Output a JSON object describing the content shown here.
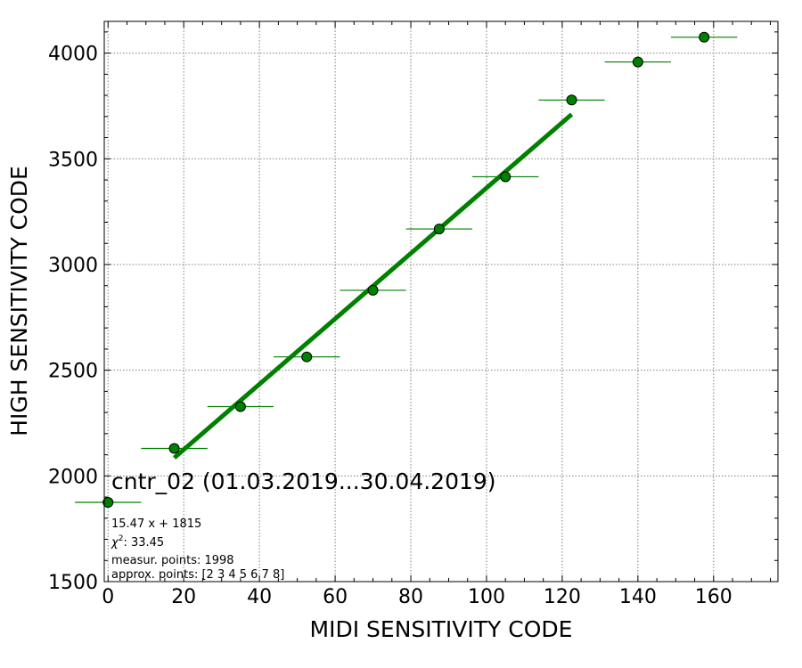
{
  "chart_data": {
    "type": "scatter",
    "title": "cntr_02 (01.03.2019...30.04.2019)",
    "xlabel": "MIDI SENSITIVITY CODE",
    "ylabel": "HIGH SENSITIVITY CODE",
    "xlim": [
      -1,
      177
    ],
    "ylim": [
      1500,
      4150
    ],
    "x_ticks": [
      0,
      20,
      40,
      60,
      80,
      100,
      120,
      140,
      160
    ],
    "y_ticks": [
      1500,
      2000,
      2500,
      3000,
      3500,
      4000
    ],
    "grid": true,
    "color": "#008000",
    "series": [
      {
        "x": [
          0,
          17.5,
          35,
          52.5,
          70,
          87.5,
          105,
          122.5,
          140,
          157.5
        ],
        "y": [
          1875,
          2130,
          2328,
          2563,
          2878,
          3168,
          3415,
          3778,
          3958,
          4075
        ],
        "x_error": 8.75
      }
    ],
    "fit_line": {
      "x": [
        17.5,
        122.5
      ],
      "slope": 15.47,
      "intercept": 1815
    },
    "annotations": {
      "equation": "15.47 x + 1815",
      "chi2": ": 33.45",
      "measured": "measur. points: 1998",
      "approx": "approx. points: [2 3 4 5 6 7 8]"
    }
  }
}
